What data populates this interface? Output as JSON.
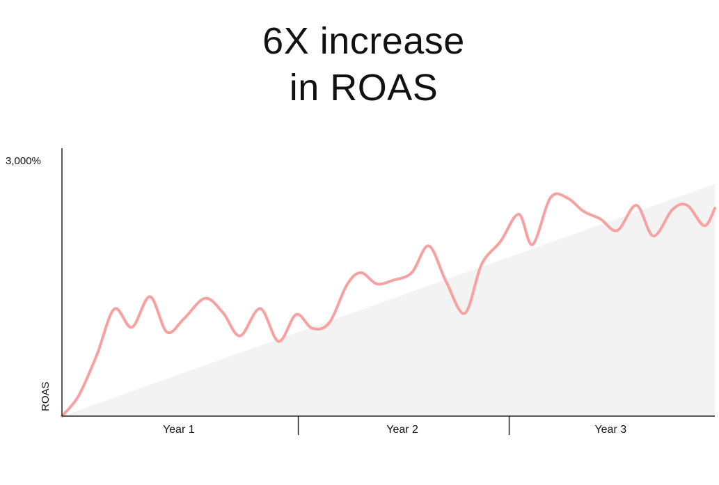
{
  "chart_data": {
    "type": "line",
    "title_lines": [
      "6X increase",
      "in ROAS"
    ],
    "xlabel": "",
    "ylabel": "ROAS",
    "y_tick_labels": [
      "3,000%"
    ],
    "ylim": [
      0,
      3000
    ],
    "xlim": [
      0,
      3.08
    ],
    "categories": [
      "Year 1",
      "Year 2",
      "Year 3"
    ],
    "grid": false,
    "legend": "none",
    "colors": {
      "line": "#f7a1a1",
      "trend_fill": "#f3f3f3",
      "axis": "#222222",
      "text": "#111111"
    },
    "series": [
      {
        "x": [
          0,
          0.079,
          0.165,
          0.247,
          0.33,
          0.415,
          0.495,
          0.575,
          0.675,
          0.76,
          0.84,
          0.935,
          1.022,
          1.105,
          1.18,
          1.26,
          1.345,
          1.41,
          1.485,
          1.56,
          1.65,
          1.73,
          1.81,
          1.9,
          1.98,
          2.07,
          2.155,
          2.22,
          2.305,
          2.385,
          2.46,
          2.54,
          2.62,
          2.71,
          2.79,
          2.88,
          2.95,
          3.03,
          3.08
        ],
        "values": [
          0,
          240,
          720,
          1255,
          1040,
          1400,
          985,
          1140,
          1380,
          1210,
          940,
          1260,
          875,
          1190,
          1030,
          1090,
          1540,
          1680,
          1550,
          1590,
          1680,
          1995,
          1590,
          1205,
          1780,
          2050,
          2365,
          2010,
          2560,
          2555,
          2400,
          2310,
          2175,
          2470,
          2110,
          2420,
          2470,
          2230,
          2435
        ]
      }
    ],
    "trend_fill": {
      "x": [
        0,
        3.08
      ],
      "values": [
        0,
        2720
      ]
    }
  }
}
